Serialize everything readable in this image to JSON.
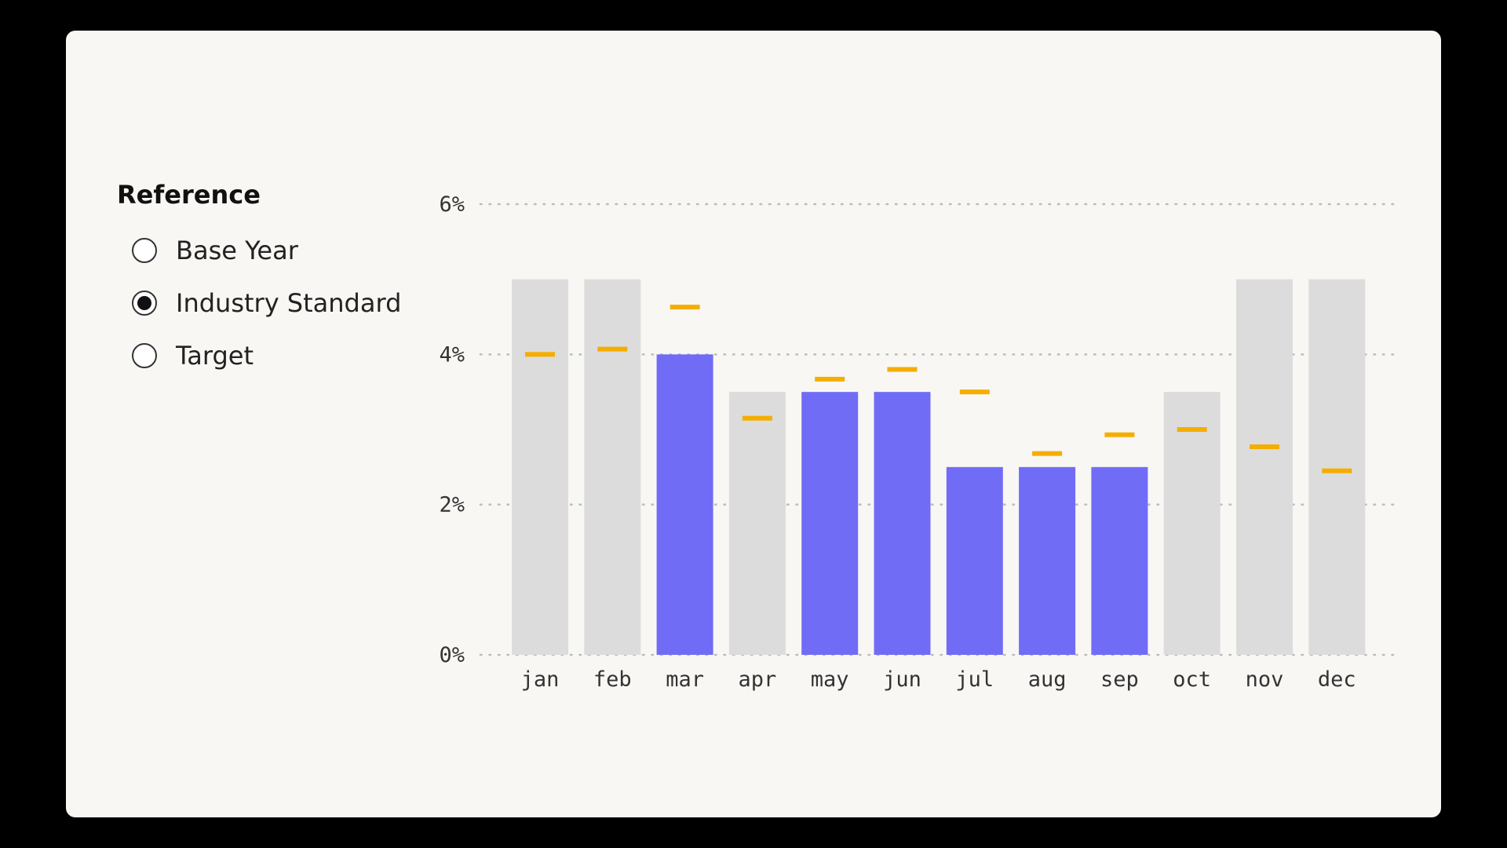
{
  "reference": {
    "title": "Reference",
    "options": [
      {
        "label": "Base Year",
        "selected": false
      },
      {
        "label": "Industry Standard",
        "selected": true
      },
      {
        "label": "Target",
        "selected": false
      }
    ]
  },
  "colors": {
    "highlight_bar": "#716cf6",
    "neutral_bar": "#dcdcdc",
    "reference_marker": "#f5ad00",
    "gridline": "#bbbbbb"
  },
  "chart_data": {
    "type": "bar",
    "categories": [
      "jan",
      "feb",
      "mar",
      "apr",
      "may",
      "jun",
      "jul",
      "aug",
      "sep",
      "oct",
      "nov",
      "dec"
    ],
    "values": [
      5.0,
      5.0,
      4.0,
      3.5,
      3.5,
      3.5,
      2.5,
      2.5,
      2.5,
      3.5,
      5.0,
      5.0
    ],
    "highlighted": [
      false,
      false,
      true,
      false,
      true,
      true,
      true,
      true,
      true,
      false,
      false,
      false
    ],
    "reference_values": [
      4.0,
      4.07,
      4.63,
      3.15,
      3.67,
      3.8,
      3.5,
      2.68,
      2.93,
      3.0,
      2.77,
      2.45
    ],
    "yticks": [
      "0%",
      "2%",
      "4%",
      "6%"
    ],
    "ytick_values": [
      0,
      2,
      4,
      6
    ],
    "ylim": [
      0,
      6
    ],
    "grid": "dotted-horizontal",
    "title": "",
    "xlabel": "",
    "ylabel": ""
  }
}
